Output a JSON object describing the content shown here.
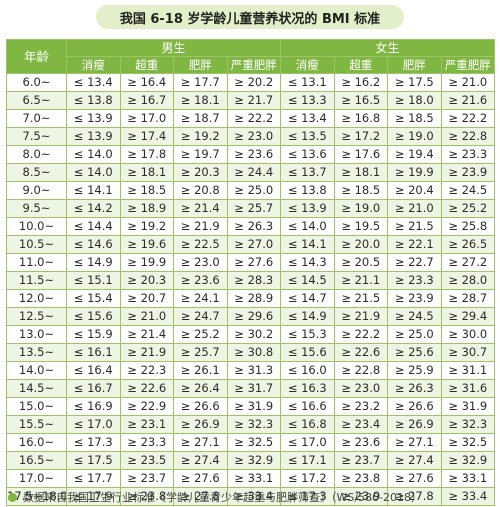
{
  "title": "我国 6-18 岁学龄儿童营养状况的 BMI 标准",
  "header": {
    "age": "年龄",
    "male": "男生",
    "female": "女生",
    "categories": [
      "消瘦",
      "超重",
      "肥胖",
      "严重肥胖",
      "消瘦",
      "超重",
      "肥胖",
      "严重肥胖"
    ]
  },
  "rows": [
    {
      "age": "6.0~",
      "cells": [
        "≤ 13.4",
        "≥ 16.4",
        "≥ 17.7",
        "≥ 20.2",
        "≤ 13.1",
        "≥ 16.2",
        "≥ 17.5",
        "≥ 21.0"
      ]
    },
    {
      "age": "6.5~",
      "cells": [
        "≤ 13.8",
        "≥ 16.7",
        "≥ 18.1",
        "≥ 21.7",
        "≤ 13.3",
        "≥ 16.5",
        "≥ 18.0",
        "≥ 21.6"
      ]
    },
    {
      "age": "7.0~",
      "cells": [
        "≤ 13.9",
        "≥ 17.0",
        "≥ 18.7",
        "≥ 22.2",
        "≤ 13.4",
        "≥ 16.8",
        "≥ 18.5",
        "≥ 22.2"
      ]
    },
    {
      "age": "7.5~",
      "cells": [
        "≤ 13.9",
        "≥ 17.4",
        "≥ 19.2",
        "≥ 23.0",
        "≤ 13.5",
        "≥ 17.2",
        "≥ 19.0",
        "≥ 22.8"
      ]
    },
    {
      "age": "8.0~",
      "cells": [
        "≤ 14.0",
        "≥ 17.8",
        "≥ 19.7",
        "≥ 23.6",
        "≤ 13.6",
        "≥ 17.6",
        "≥ 19.4",
        "≥ 23.3"
      ]
    },
    {
      "age": "8.5~",
      "cells": [
        "≤ 14.0",
        "≥ 18.1",
        "≥ 20.3",
        "≥ 24.4",
        "≤ 13.7",
        "≥ 18.1",
        "≥ 19.9",
        "≥ 23.9"
      ]
    },
    {
      "age": "9.0~",
      "cells": [
        "≤ 14.1",
        "≥ 18.5",
        "≥ 20.8",
        "≥ 25.0",
        "≤ 13.8",
        "≥ 18.5",
        "≥ 20.4",
        "≥ 24.5"
      ]
    },
    {
      "age": "9.5~",
      "cells": [
        "≤ 14.2",
        "≥ 18.9",
        "≥ 21.4",
        "≥ 25.7",
        "≤ 13.9",
        "≥ 19.0",
        "≥ 21.0",
        "≥ 25.2"
      ]
    },
    {
      "age": "10.0~",
      "cells": [
        "≤ 14.4",
        "≥ 19.2",
        "≥ 21.9",
        "≥ 26.3",
        "≤ 14.0",
        "≥ 19.5",
        "≥ 21.5",
        "≥ 25.8"
      ]
    },
    {
      "age": "10.5~",
      "cells": [
        "≤ 14.6",
        "≥ 19.6",
        "≥ 22.5",
        "≥ 27.0",
        "≤ 14.1",
        "≥ 20.0",
        "≥ 22.1",
        "≥ 26.5"
      ]
    },
    {
      "age": "11.0~",
      "cells": [
        "≤ 14.9",
        "≥ 19.9",
        "≥ 23.0",
        "≥ 27.6",
        "≤ 14.3",
        "≥ 20.5",
        "≥ 22.7",
        "≥ 27.2"
      ]
    },
    {
      "age": "11.5~",
      "cells": [
        "≤ 15.1",
        "≥ 20.3",
        "≥ 23.6",
        "≥ 28.3",
        "≤ 14.5",
        "≥ 21.1",
        "≥ 23.3",
        "≥ 28.0"
      ]
    },
    {
      "age": "12.0~",
      "cells": [
        "≤ 15.4",
        "≥ 20.7",
        "≥ 24.1",
        "≥ 28.9",
        "≤ 14.7",
        "≥ 21.5",
        "≥ 23.9",
        "≥ 28.7"
      ]
    },
    {
      "age": "12.5~",
      "cells": [
        "≤ 15.6",
        "≥ 21.0",
        "≥ 24.7",
        "≥ 29.6",
        "≤ 14.9",
        "≥ 21.9",
        "≥ 24.5",
        "≥ 29.4"
      ]
    },
    {
      "age": "13.0~",
      "cells": [
        "≤ 15.9",
        "≥ 21.4",
        "≥ 25.2",
        "≥ 30.2",
        "≤ 15.3",
        "≥ 22.2",
        "≥ 25.0",
        "≥ 30.0"
      ]
    },
    {
      "age": "13.5~",
      "cells": [
        "≤ 16.1",
        "≥ 21.9",
        "≥ 25.7",
        "≥ 30.8",
        "≤ 15.6",
        "≥ 22.6",
        "≥ 25.6",
        "≥ 30.7"
      ]
    },
    {
      "age": "14.0~",
      "cells": [
        "≤ 16.4",
        "≥ 22.3",
        "≥ 26.1",
        "≥ 31.3",
        "≤ 16.0",
        "≥ 22.8",
        "≥ 25.9",
        "≥ 31.1"
      ]
    },
    {
      "age": "14.5~",
      "cells": [
        "≤ 16.7",
        "≥ 22.6",
        "≥ 26.4",
        "≥ 31.7",
        "≤ 16.3",
        "≥ 23.0",
        "≥ 26.3",
        "≥ 31.6"
      ]
    },
    {
      "age": "15.0~",
      "cells": [
        "≤ 16.9",
        "≥ 22.9",
        "≥ 26.6",
        "≥ 31.9",
        "≤ 16.6",
        "≥ 23.2",
        "≥ 26.6",
        "≥ 31.9"
      ]
    },
    {
      "age": "15.5~",
      "cells": [
        "≤ 17.0",
        "≥ 23.1",
        "≥ 26.9",
        "≥ 32.3",
        "≤ 16.8",
        "≥ 23.4",
        "≥ 26.9",
        "≥ 32.3"
      ]
    },
    {
      "age": "16.0~",
      "cells": [
        "≤ 17.3",
        "≥ 23.3",
        "≥ 27.1",
        "≥ 32.5",
        "≤ 17.0",
        "≥ 23.6",
        "≥ 27.1",
        "≥ 32.5"
      ]
    },
    {
      "age": "16.5~",
      "cells": [
        "≤ 17.5",
        "≥ 23.5",
        "≥ 27.4",
        "≥ 32.9",
        "≤ 17.1",
        "≥ 23.7",
        "≥ 27.4",
        "≥ 32.9"
      ]
    },
    {
      "age": "17.0~",
      "cells": [
        "≤ 17.7",
        "≥ 23.7",
        "≥ 27.6",
        "≥ 33.1",
        "≤ 17.2",
        "≥ 23.8",
        "≥ 27.6",
        "≥ 33.1"
      ]
    },
    {
      "age": "17.5~18.0",
      "cells": [
        "≤ 17.9",
        "≥ 23.8",
        "≥ 27.8",
        "≥ 33.4",
        "≤ 17.3",
        "≥ 23.9",
        "≥ 27.8",
        "≥ 33.4"
      ]
    }
  ],
  "source": "数据来自我国卫生行业标准《学龄儿童青少年超重与肥胖筛查》（WS/586-2018）",
  "colors": {
    "accent": "#7fb742",
    "row_alt": "#eef5e2",
    "title_bg": "#e3efc8"
  }
}
